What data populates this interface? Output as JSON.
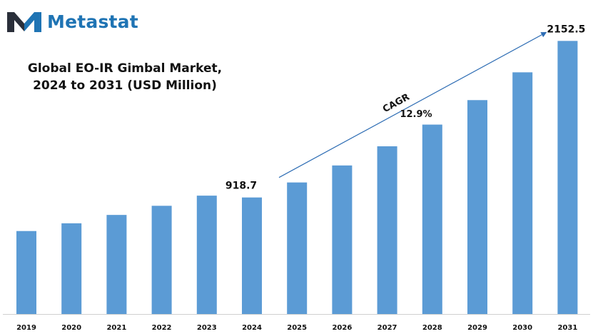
{
  "brand": {
    "name": "Metastat",
    "logo_icon": "metastat-m-logo-icon",
    "color": "#1f74b4"
  },
  "chart_data": {
    "type": "bar",
    "title": "Global EO-IR Gimbal Market,",
    "subtitle": "2024 to 2031 (USD Million)",
    "xlabel": "",
    "ylabel": "",
    "categories": [
      "2019",
      "2020",
      "2021",
      "2022",
      "2023",
      "2024",
      "2025",
      "2026",
      "2027",
      "2028",
      "2029",
      "2030",
      "2031"
    ],
    "values": [
      654,
      715,
      781,
      853,
      933,
      918.7,
      1037,
      1171,
      1322,
      1493,
      1686,
      1905,
      2152.5
    ],
    "data_labels": [
      {
        "category": "2024",
        "text": "918.7"
      },
      {
        "category": "2031",
        "text": "2152.5"
      }
    ],
    "annotation": {
      "label": "CAGR",
      "value": "12.9%",
      "from": "2024",
      "to": "2031"
    },
    "ylim": [
      0,
      2250
    ],
    "bar_color": "#5b9bd5",
    "grid": false,
    "legend": "none"
  }
}
